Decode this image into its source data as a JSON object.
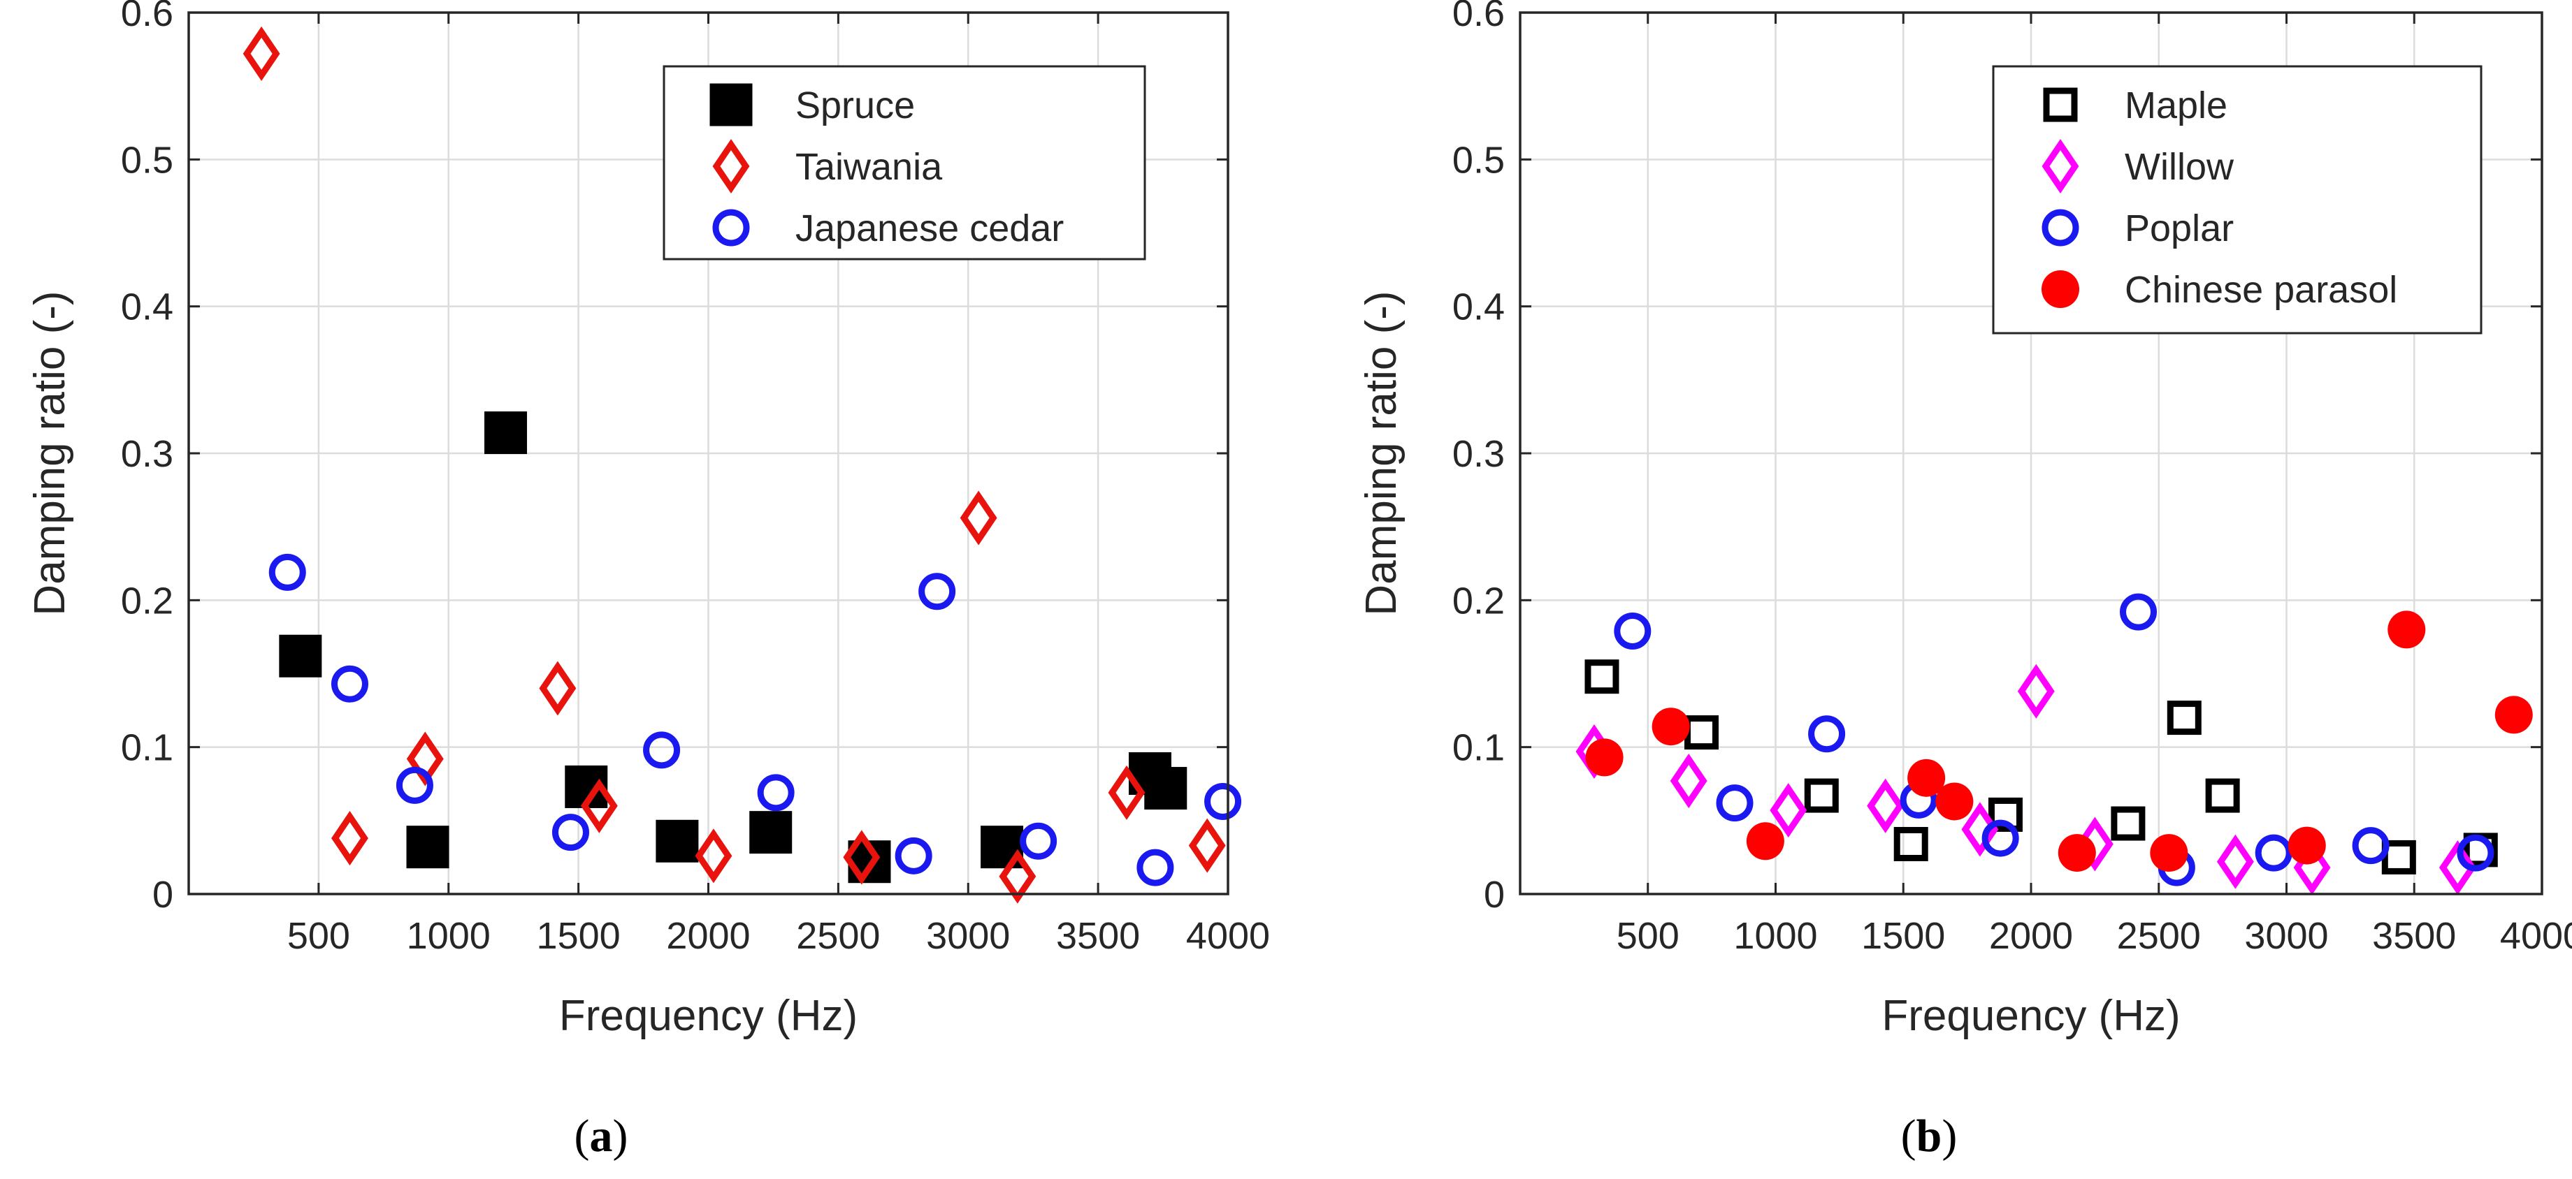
{
  "chart_data": [
    {
      "type": "scatter",
      "panel_label": "a",
      "xlabel": "Frequency (Hz)",
      "ylabel": "Damping ratio (-)",
      "xlim": [
        0,
        4000
      ],
      "ylim": [
        0,
        0.6
      ],
      "xticks": [
        500,
        1000,
        1500,
        2000,
        2500,
        3000,
        3500,
        4000
      ],
      "yticks": [
        0,
        0.1,
        0.2,
        0.3,
        0.4,
        0.5,
        0.6
      ],
      "grid": true,
      "legend_position": "top-right",
      "series": [
        {
          "name": "Spruce",
          "marker": "square",
          "filled": true,
          "color": "#000000",
          "points": [
            [
              430,
              0.162
            ],
            [
              920,
              0.032
            ],
            [
              1220,
              0.314
            ],
            [
              1530,
              0.073
            ],
            [
              1880,
              0.036
            ],
            [
              2240,
              0.042
            ],
            [
              2620,
              0.022
            ],
            [
              3130,
              0.032
            ],
            [
              3700,
              0.082
            ],
            [
              3760,
              0.072
            ]
          ]
        },
        {
          "name": "Taiwania",
          "marker": "diamond",
          "filled": false,
          "color": "#e8130c",
          "points": [
            [
              280,
              0.572
            ],
            [
              620,
              0.038
            ],
            [
              910,
              0.092
            ],
            [
              1420,
              0.14
            ],
            [
              1580,
              0.06
            ],
            [
              2020,
              0.026
            ],
            [
              2590,
              0.025
            ],
            [
              3040,
              0.256
            ],
            [
              3190,
              0.012
            ],
            [
              3610,
              0.069
            ],
            [
              3920,
              0.033
            ]
          ]
        },
        {
          "name": "Japanese cedar",
          "marker": "circle",
          "filled": false,
          "color": "#1919f0",
          "points": [
            [
              380,
              0.219
            ],
            [
              620,
              0.143
            ],
            [
              870,
              0.074
            ],
            [
              1470,
              0.042
            ],
            [
              1820,
              0.098
            ],
            [
              2260,
              0.069
            ],
            [
              2790,
              0.026
            ],
            [
              2880,
              0.206
            ],
            [
              3270,
              0.036
            ],
            [
              3720,
              0.018
            ],
            [
              3980,
              0.063
            ]
          ]
        }
      ]
    },
    {
      "type": "scatter",
      "panel_label": "b",
      "xlabel": "Frequency (Hz)",
      "ylabel": "Damping ratio (-)",
      "xlim": [
        0,
        4000
      ],
      "ylim": [
        0,
        0.6
      ],
      "xticks": [
        500,
        1000,
        1500,
        2000,
        2500,
        3000,
        3500,
        4000
      ],
      "yticks": [
        0,
        0.1,
        0.2,
        0.3,
        0.4,
        0.5,
        0.6
      ],
      "grid": true,
      "legend_position": "top-right",
      "series": [
        {
          "name": "Maple",
          "marker": "square",
          "filled": false,
          "color": "#000000",
          "points": [
            [
              320,
              0.148
            ],
            [
              710,
              0.11
            ],
            [
              1180,
              0.067
            ],
            [
              1530,
              0.034
            ],
            [
              1900,
              0.054
            ],
            [
              2380,
              0.048
            ],
            [
              2600,
              0.12
            ],
            [
              2750,
              0.067
            ],
            [
              3440,
              0.025
            ],
            [
              3760,
              0.03
            ]
          ]
        },
        {
          "name": "Willow",
          "marker": "diamond",
          "filled": false,
          "color": "#ff00ff",
          "points": [
            [
              290,
              0.097
            ],
            [
              660,
              0.077
            ],
            [
              1050,
              0.057
            ],
            [
              1430,
              0.06
            ],
            [
              1800,
              0.044
            ],
            [
              2020,
              0.138
            ],
            [
              2250,
              0.034
            ],
            [
              2800,
              0.022
            ],
            [
              3100,
              0.018
            ],
            [
              3670,
              0.018
            ]
          ]
        },
        {
          "name": "Poplar",
          "marker": "circle",
          "filled": false,
          "color": "#1919f0",
          "points": [
            [
              440,
              0.179
            ],
            [
              840,
              0.062
            ],
            [
              1200,
              0.109
            ],
            [
              1560,
              0.064
            ],
            [
              1880,
              0.038
            ],
            [
              2420,
              0.192
            ],
            [
              2570,
              0.018
            ],
            [
              2950,
              0.028
            ],
            [
              3330,
              0.033
            ],
            [
              3740,
              0.028
            ]
          ]
        },
        {
          "name": "Chinese parasol",
          "marker": "circle",
          "filled": true,
          "color": "#ff0000",
          "points": [
            [
              330,
              0.093
            ],
            [
              590,
              0.114
            ],
            [
              960,
              0.036
            ],
            [
              1590,
              0.079
            ],
            [
              1700,
              0.063
            ],
            [
              2180,
              0.028
            ],
            [
              2540,
              0.028
            ],
            [
              3080,
              0.033
            ],
            [
              3470,
              0.18
            ],
            [
              3890,
              0.122
            ]
          ]
        }
      ]
    }
  ]
}
